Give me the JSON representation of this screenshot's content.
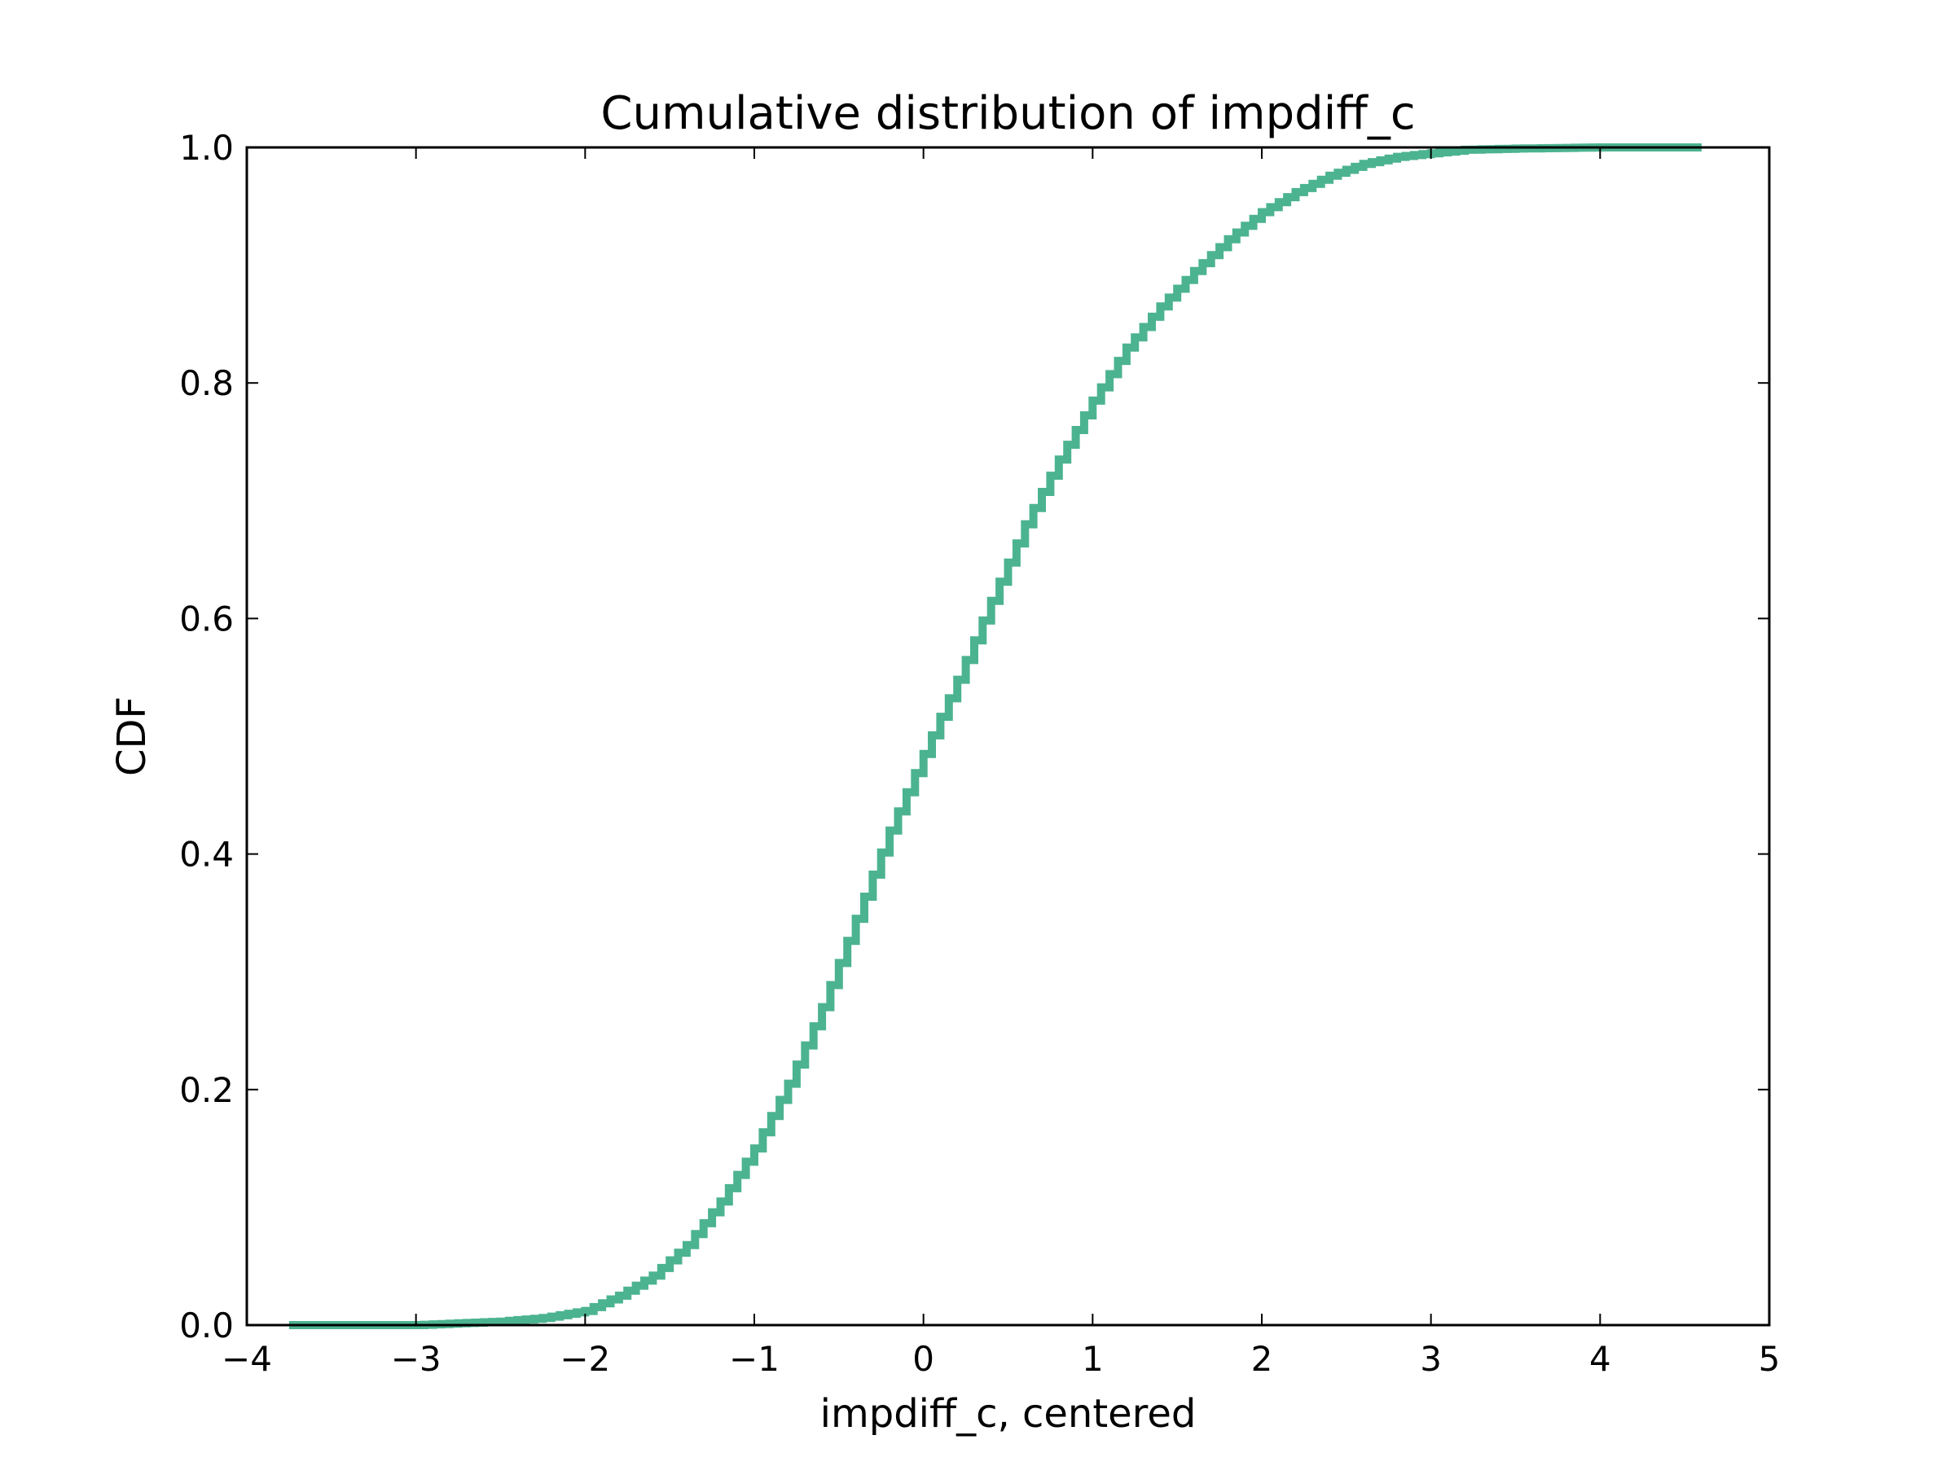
{
  "chart_data": {
    "type": "line",
    "step": true,
    "title": "Cumulative distribution of impdiff_c",
    "xlabel": "impdiff_c, centered",
    "ylabel": "CDF",
    "xlim": [
      -4,
      5
    ],
    "ylim": [
      0,
      1
    ],
    "xticks": [
      -4,
      -3,
      -2,
      -1,
      0,
      1,
      2,
      3,
      4,
      5
    ],
    "xtick_labels": [
      "−4",
      "−3",
      "−2",
      "−1",
      "0",
      "1",
      "2",
      "3",
      "4",
      "5"
    ],
    "yticks": [
      0,
      0.2,
      0.4,
      0.6,
      0.8,
      1.0
    ],
    "ytick_labels": [
      "0.0",
      "0.2",
      "0.4",
      "0.6",
      "0.8",
      "1.0"
    ],
    "grid": false,
    "color": "#4cb391",
    "series": [
      {
        "x": [
          -3.75,
          -3.0,
          -2.5,
          -2.25,
          -2.0,
          -1.8,
          -1.6,
          -1.4,
          -1.2,
          -1.0,
          -0.8,
          -0.6,
          -0.4,
          -0.2,
          0.0,
          0.2,
          0.4,
          0.6,
          0.8,
          1.0,
          1.2,
          1.4,
          1.6,
          1.8,
          2.0,
          2.2,
          2.4,
          2.6,
          2.8,
          3.0,
          3.2,
          3.5,
          4.0,
          4.6
        ],
        "y": [
          0.0,
          0.0,
          0.003,
          0.006,
          0.012,
          0.025,
          0.042,
          0.068,
          0.105,
          0.15,
          0.205,
          0.27,
          0.345,
          0.42,
          0.485,
          0.548,
          0.615,
          0.68,
          0.735,
          0.785,
          0.83,
          0.865,
          0.895,
          0.922,
          0.945,
          0.962,
          0.976,
          0.986,
          0.992,
          0.995,
          0.998,
          0.999,
          1.0,
          1.0
        ]
      }
    ]
  }
}
